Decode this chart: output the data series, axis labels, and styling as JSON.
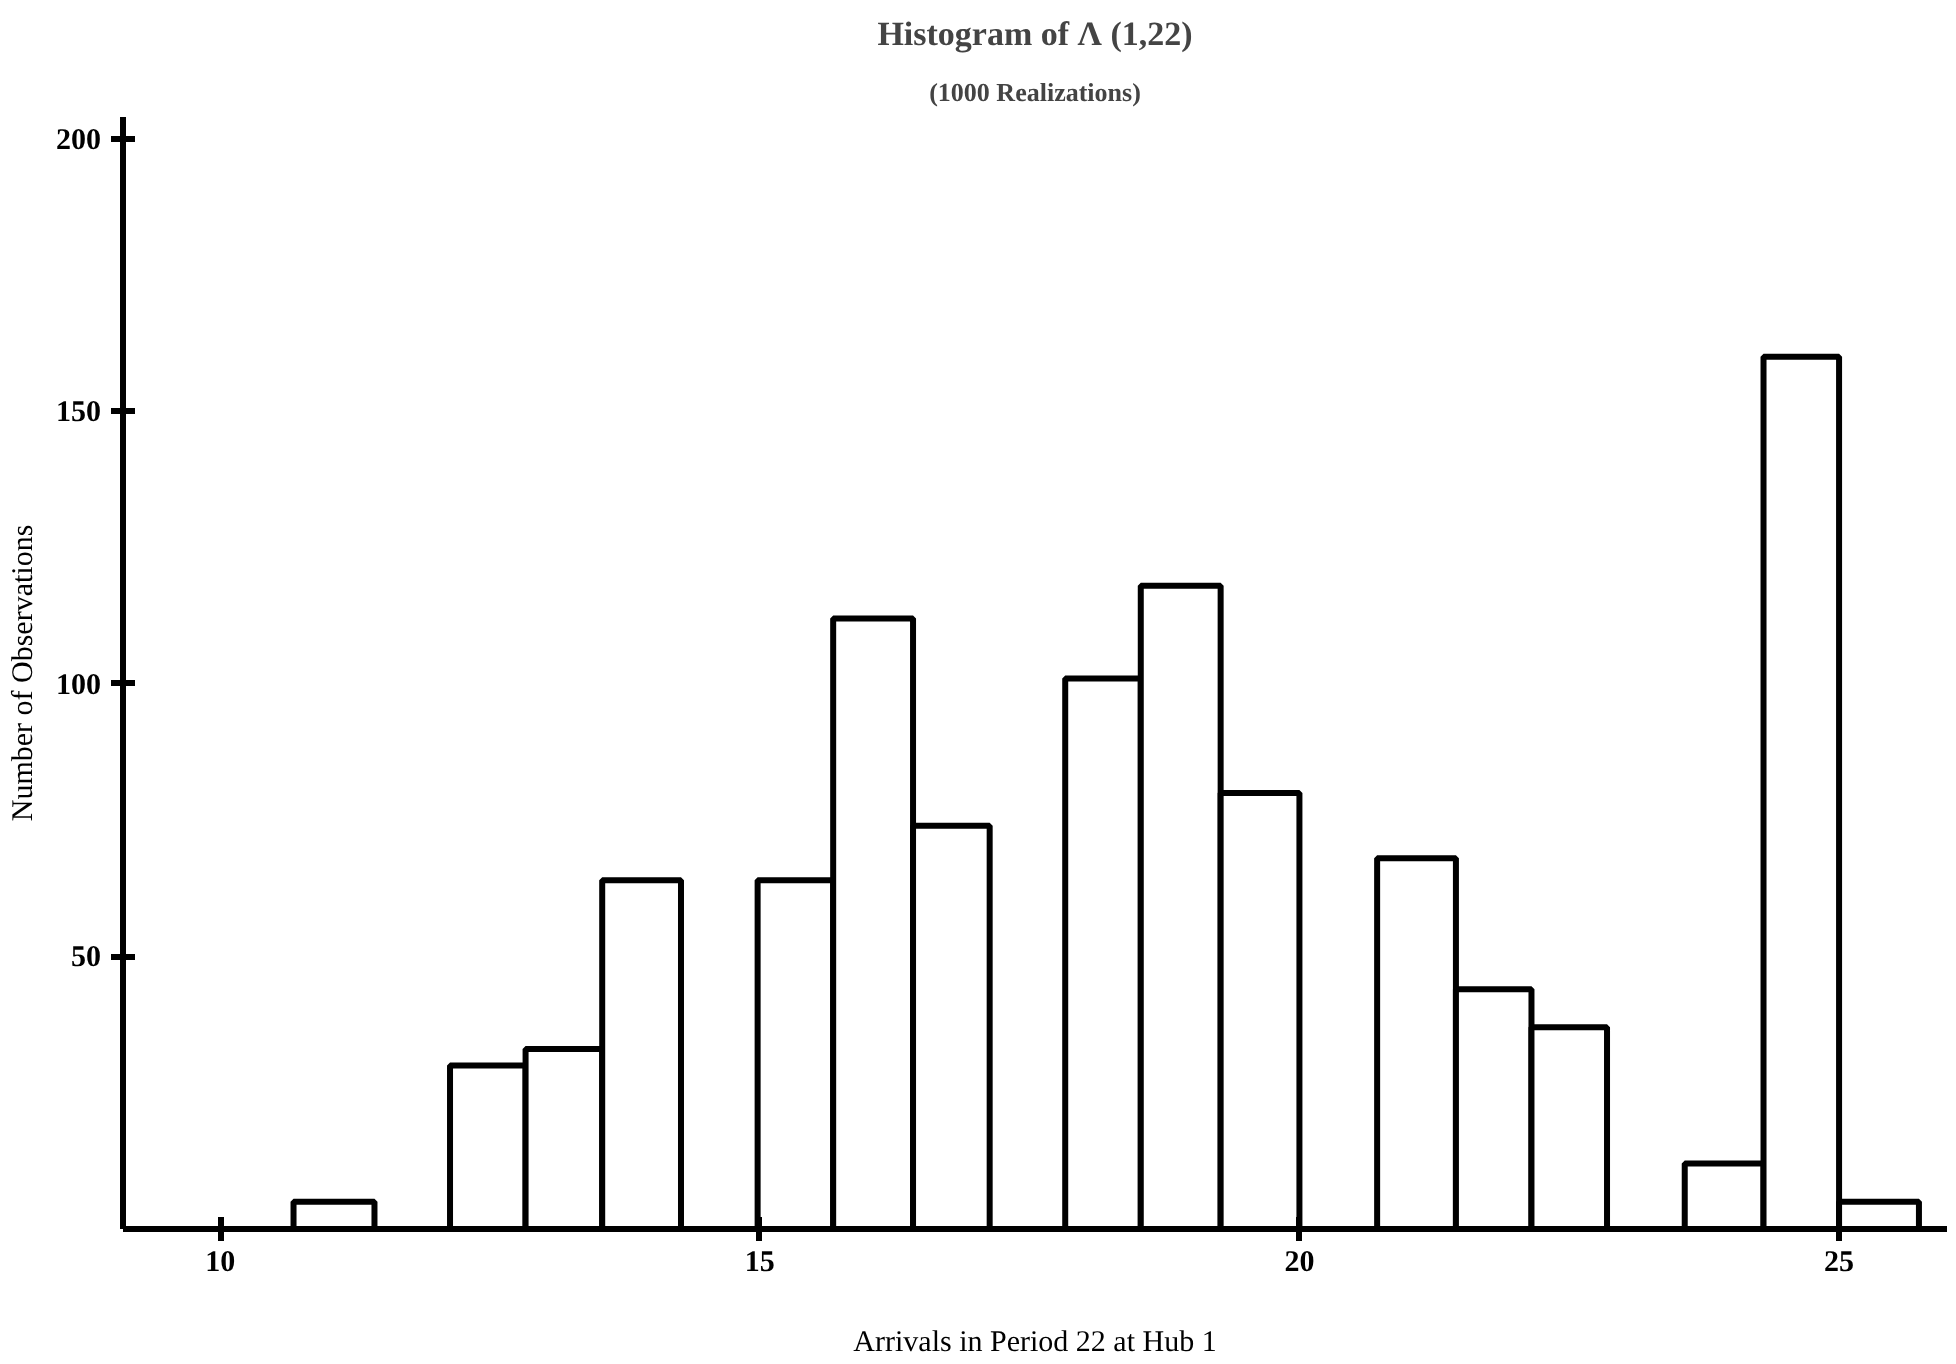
{
  "chart_data": {
    "type": "histogram",
    "title": "Histogram of Λ (1,22)",
    "subtitle": "(1000 Realizations)",
    "xlabel": "Arrivals in Period 22 at Hub 1",
    "ylabel": "Number of Observations",
    "bins": [
      10.68,
      11.43,
      12.13,
      12.83,
      13.54,
      14.27,
      14.98,
      15.68,
      16.42,
      17.13,
      17.83,
      18.53,
      19.27,
      20.0,
      20.72,
      21.45,
      22.15,
      22.85,
      23.57,
      24.3,
      25.0,
      25.74
    ],
    "values": [
      5,
      0,
      30,
      33,
      64,
      0,
      64,
      112,
      74,
      0,
      101,
      118,
      80,
      0,
      68,
      44,
      37,
      0,
      12,
      160,
      5
    ],
    "color": "#ffffff",
    "xlim": [
      9.1,
      26
    ],
    "ylim": [
      0,
      204
    ],
    "xticks": [
      10,
      15,
      20,
      25
    ],
    "yticks": [
      50,
      100,
      150,
      200
    ],
    "grid": false
  }
}
